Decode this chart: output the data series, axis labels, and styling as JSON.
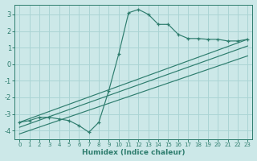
{
  "xlabel": "Humidex (Indice chaleur)",
  "bg_color": "#cce8e8",
  "grid_color": "#aad4d4",
  "line_color": "#2e7d6e",
  "xlim": [
    -0.5,
    23.5
  ],
  "ylim": [
    -4.5,
    3.6
  ],
  "xticks": [
    0,
    1,
    2,
    3,
    4,
    5,
    6,
    7,
    8,
    9,
    10,
    11,
    12,
    13,
    14,
    15,
    16,
    17,
    18,
    19,
    20,
    21,
    22,
    23
  ],
  "yticks": [
    -4,
    -3,
    -2,
    -1,
    0,
    1,
    2,
    3
  ],
  "curve_x": [
    0,
    1,
    2,
    3,
    4,
    5,
    6,
    7,
    8,
    9,
    10,
    11,
    12,
    13,
    14,
    15,
    16,
    17,
    18,
    19,
    20,
    21,
    22,
    23
  ],
  "curve_y": [
    -3.5,
    -3.4,
    -3.2,
    -3.2,
    -3.3,
    -3.4,
    -3.7,
    -4.1,
    -3.5,
    -1.6,
    0.6,
    3.1,
    3.3,
    3.0,
    2.4,
    2.4,
    1.8,
    1.55,
    1.55,
    1.5,
    1.5,
    1.4,
    1.4,
    1.5
  ],
  "line1_x": [
    0,
    23
  ],
  "line1_y": [
    -3.5,
    1.5
  ],
  "line2_x": [
    0,
    23
  ],
  "line2_y": [
    -3.8,
    1.1
  ],
  "line3_x": [
    0,
    23
  ],
  "line3_y": [
    -4.2,
    0.5
  ]
}
